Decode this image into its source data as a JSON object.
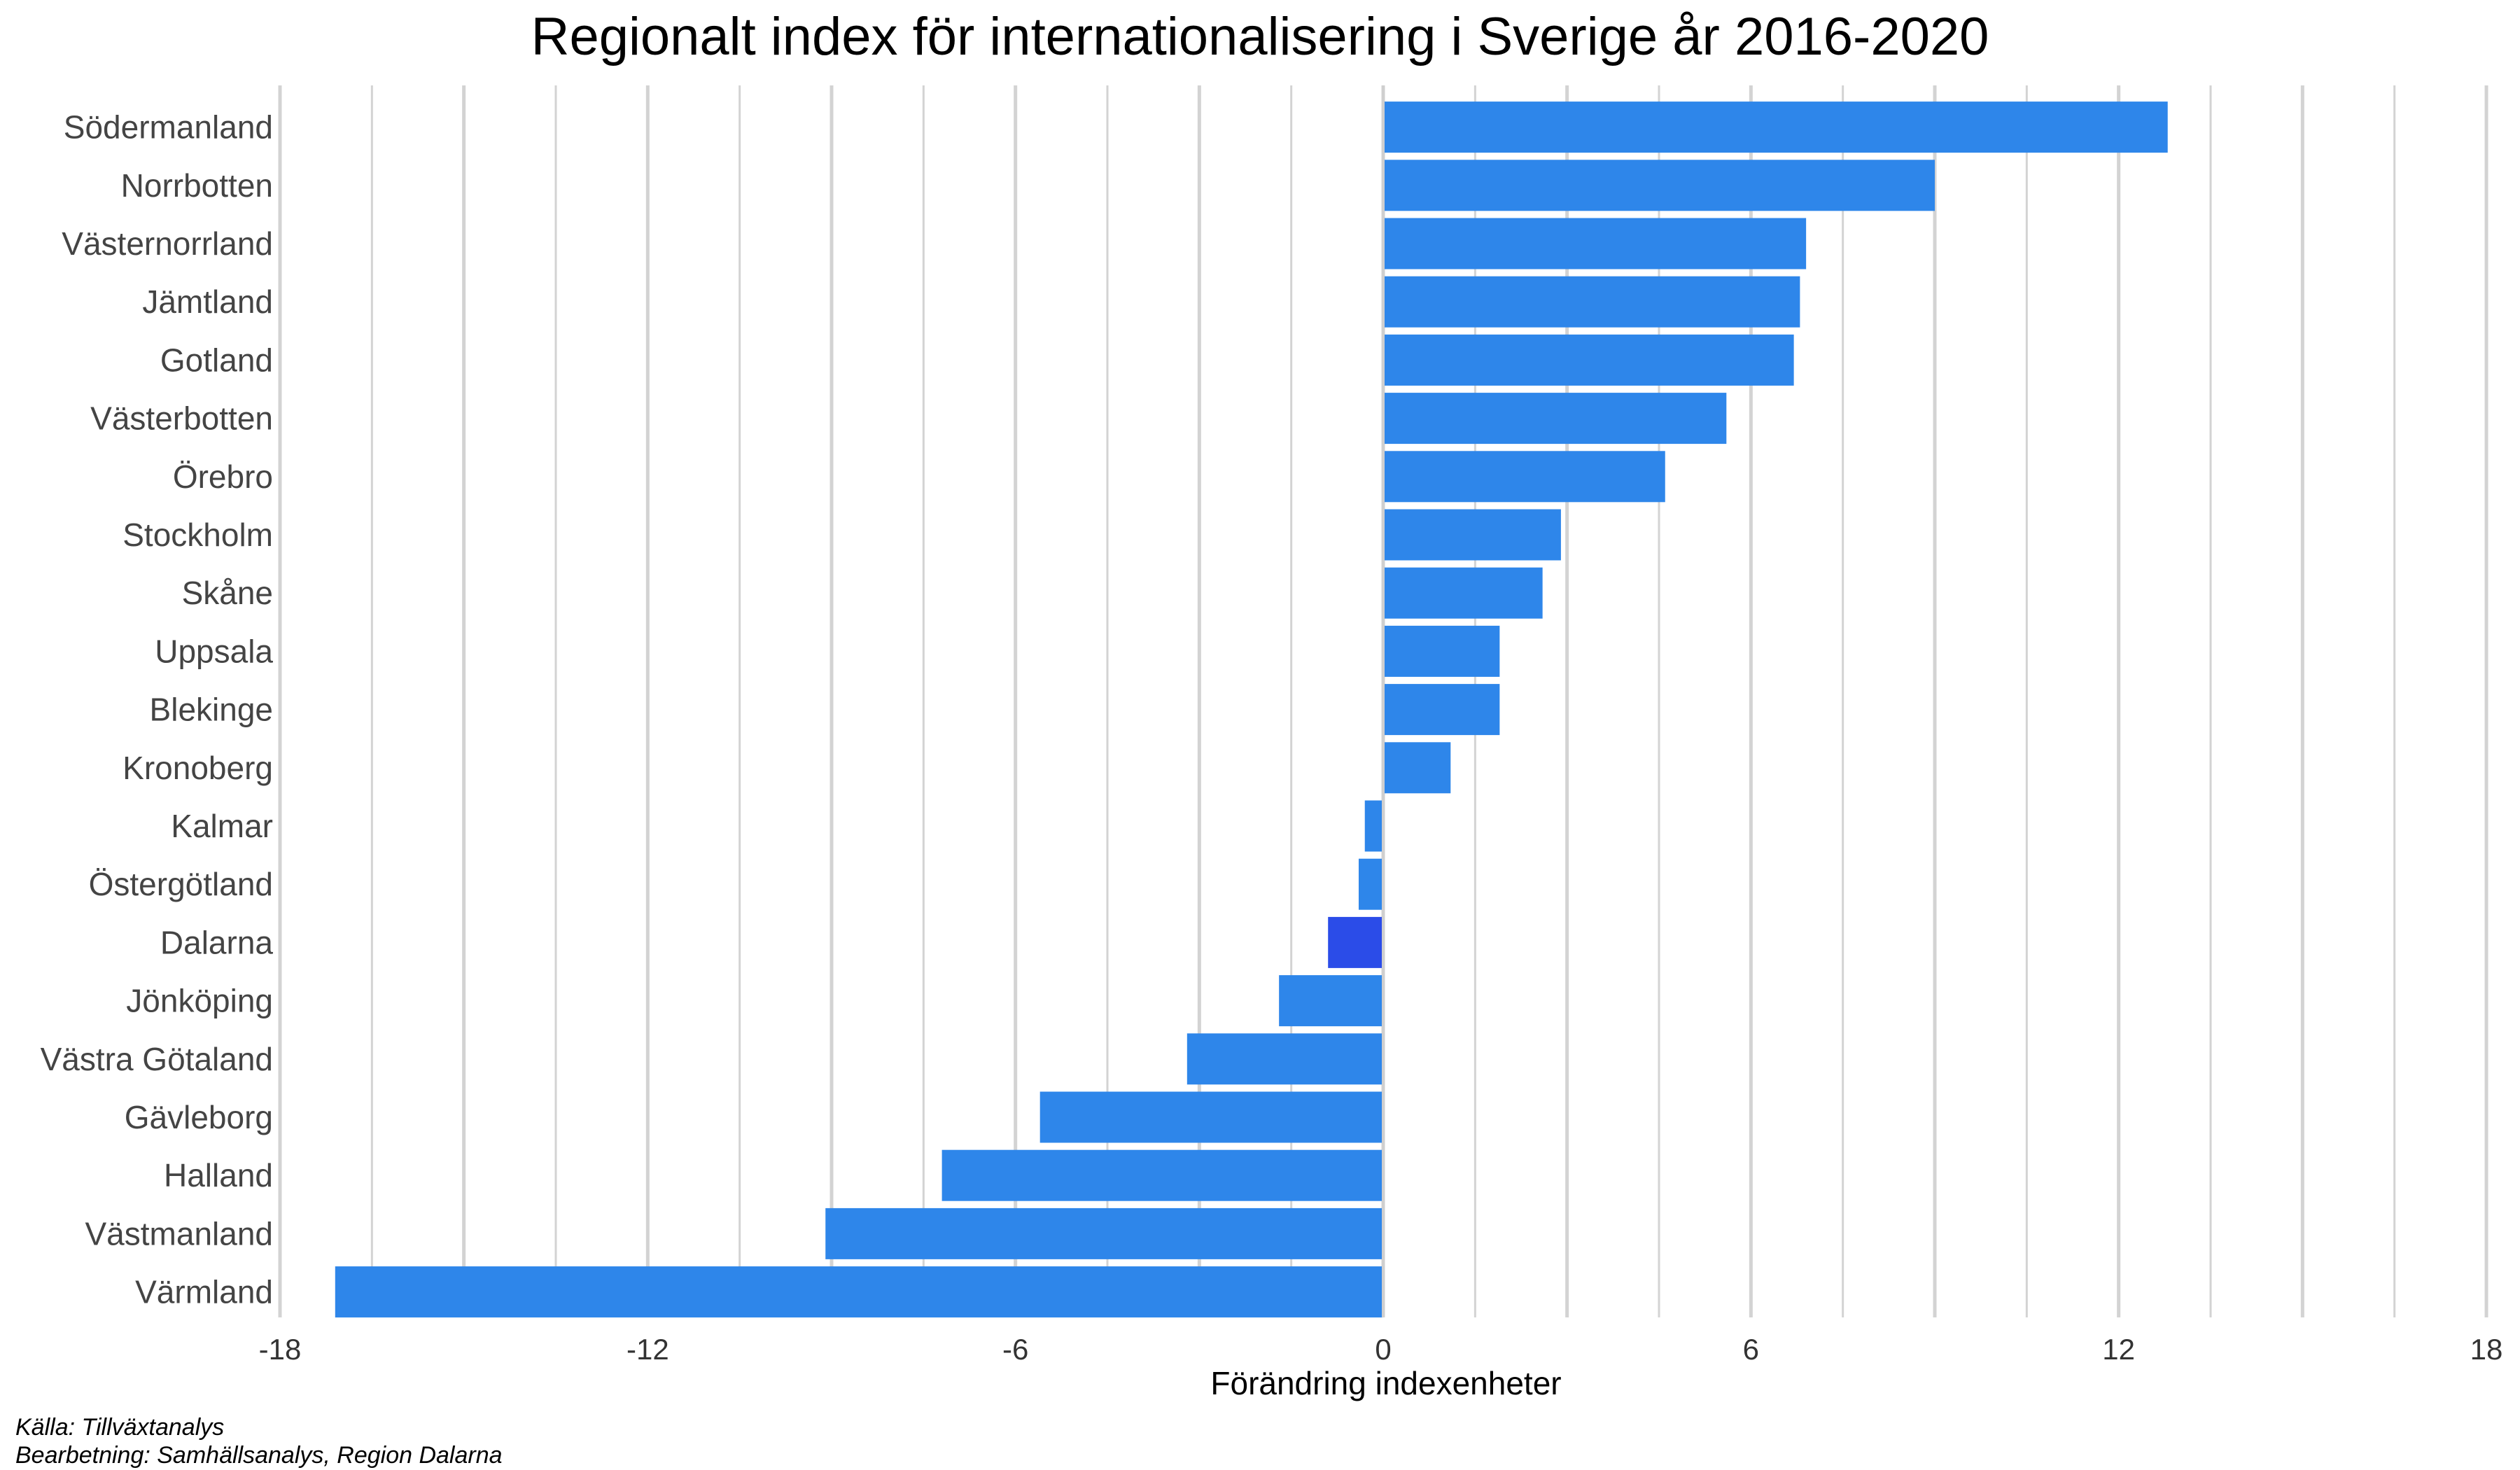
{
  "chart_data": {
    "type": "bar",
    "orientation": "horizontal",
    "title": "Regionalt index för internationalisering i Sverige år 2016-2020",
    "xlabel": "Förändring indexenheter",
    "ylabel": "",
    "xlim": [
      -18,
      18
    ],
    "xticks": [
      -18,
      -12,
      -6,
      0,
      6,
      12,
      18
    ],
    "xtick_labels": [
      "-18",
      "-12",
      "-6",
      "0",
      "6",
      "12",
      "18"
    ],
    "grid": true,
    "legend": "none",
    "categories": [
      "Södermanland",
      "Norrbotten",
      "Västernorrland",
      "Jämtland",
      "Gotland",
      "Västerbotten",
      "Örebro",
      "Stockholm",
      "Skåne",
      "Uppsala",
      "Blekinge",
      "Kronoberg",
      "Kalmar",
      "Östergötland",
      "Dalarna",
      "Jönköping",
      "Västra Götaland",
      "Gävleborg",
      "Halland",
      "Västmanland",
      "Värmland"
    ],
    "values": [
      12.8,
      9.0,
      6.9,
      6.8,
      6.7,
      5.6,
      4.6,
      2.9,
      2.6,
      1.9,
      1.9,
      1.1,
      -0.3,
      -0.4,
      -0.9,
      -1.7,
      -3.2,
      -5.6,
      -7.2,
      -9.1,
      -17.1
    ],
    "highlight_category": "Dalarna",
    "colors": {
      "bar": "#2E86EA",
      "highlight": "#2B4CE8",
      "grid": "#D3D3D3"
    },
    "caption_lines": [
      "Källa: Tillväxtanalys",
      "Bearbetning: Samhällsanalys, Region Dalarna"
    ]
  }
}
